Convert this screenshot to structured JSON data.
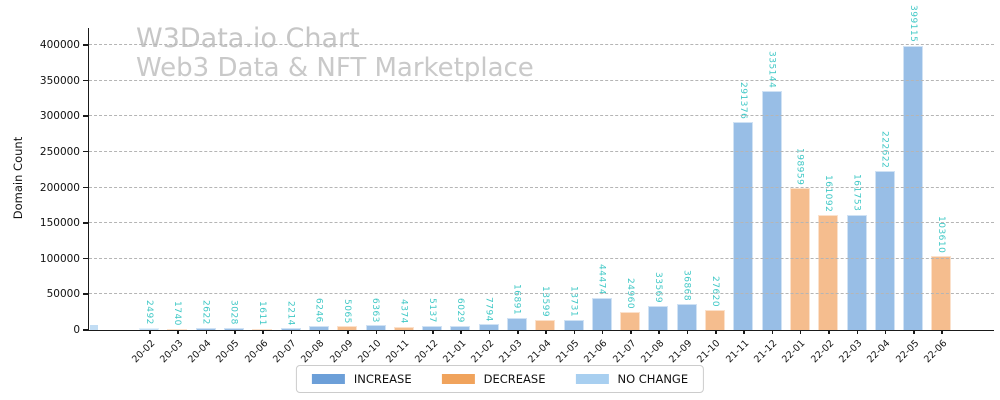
{
  "watermark": {
    "title": "W3Data.io Chart",
    "subtitle": "Web3 Data & NFT Marketplace",
    "color": "#c8c8c8"
  },
  "axes": {
    "ylabel": "Domain Count"
  },
  "legend": {
    "items": [
      {
        "label": "INCREASE",
        "kind": "increase",
        "swatch_color": "#6C9FD8"
      },
      {
        "label": "DECREASE",
        "kind": "decrease",
        "swatch_color": "#F0A35C"
      },
      {
        "label": "NO CHANGE",
        "kind": "no_change",
        "swatch_color": "#A8CFF0"
      }
    ]
  },
  "colors": {
    "bar_fill": {
      "increase": "#98BEE6",
      "decrease": "#F5BD8E",
      "no_change": "#C2DDF4"
    },
    "value_label": "#40C8C6",
    "gridline": "#b5b5b5",
    "axis": "#1a1a1a"
  },
  "chart_data": {
    "type": "bar",
    "title": "W3Data.io Chart",
    "subtitle": "Web3 Data & NFT Marketplace",
    "xlabel": "",
    "ylabel": "Domain Count",
    "ylim": [
      0,
      440000
    ],
    "yticks": [
      0,
      50000,
      100000,
      150000,
      200000,
      250000,
      300000,
      350000,
      400000
    ],
    "grid": "horizontal-dashed",
    "legend_position": "bottom-center",
    "bar_value_labels": "rotated-90-turquoise",
    "categories": [
      "20-02",
      "20-03",
      "20-04",
      "20-05",
      "20-06",
      "20-07",
      "20-08",
      "20-09",
      "20-10",
      "20-11",
      "20-12",
      "21-01",
      "21-02",
      "21-03",
      "21-04",
      "21-05",
      "21-06",
      "21-07",
      "21-08",
      "21-09",
      "21-10",
      "21-11",
      "21-12",
      "22-01",
      "22-02",
      "22-03",
      "22-04",
      "22-05",
      "22-06"
    ],
    "values": [
      2492,
      1740,
      2622,
      3028,
      1611,
      2214,
      6246,
      5065,
      6363,
      4374,
      5137,
      6029,
      7794,
      16891,
      13599,
      13731,
      44474,
      24960,
      33569,
      36868,
      27620,
      291376,
      335144,
      198959,
      161092,
      161753,
      222622,
      399115,
      103610
    ],
    "bar_kinds": [
      "no_change",
      "decrease",
      "increase",
      "increase",
      "decrease",
      "increase",
      "increase",
      "decrease",
      "increase",
      "decrease",
      "increase",
      "increase",
      "increase",
      "increase",
      "decrease",
      "increase",
      "increase",
      "decrease",
      "increase",
      "increase",
      "decrease",
      "increase",
      "increase",
      "decrease",
      "decrease",
      "increase",
      "increase",
      "increase",
      "decrease"
    ]
  }
}
